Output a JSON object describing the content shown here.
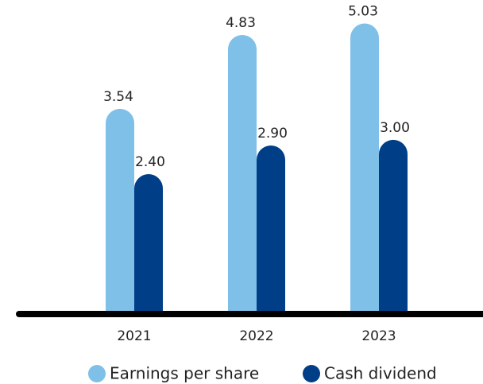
{
  "chart_data": {
    "type": "bar",
    "categories": [
      "2021",
      "2022",
      "2023"
    ],
    "series": [
      {
        "name": "Earnings per share",
        "color": "#7fc0e8",
        "values": [
          3.54,
          4.83,
          5.03
        ]
      },
      {
        "name": "Cash dividend",
        "color": "#003f87",
        "values": [
          2.4,
          2.9,
          3.0
        ]
      }
    ],
    "ylim": [
      0,
      5.44
    ]
  }
}
